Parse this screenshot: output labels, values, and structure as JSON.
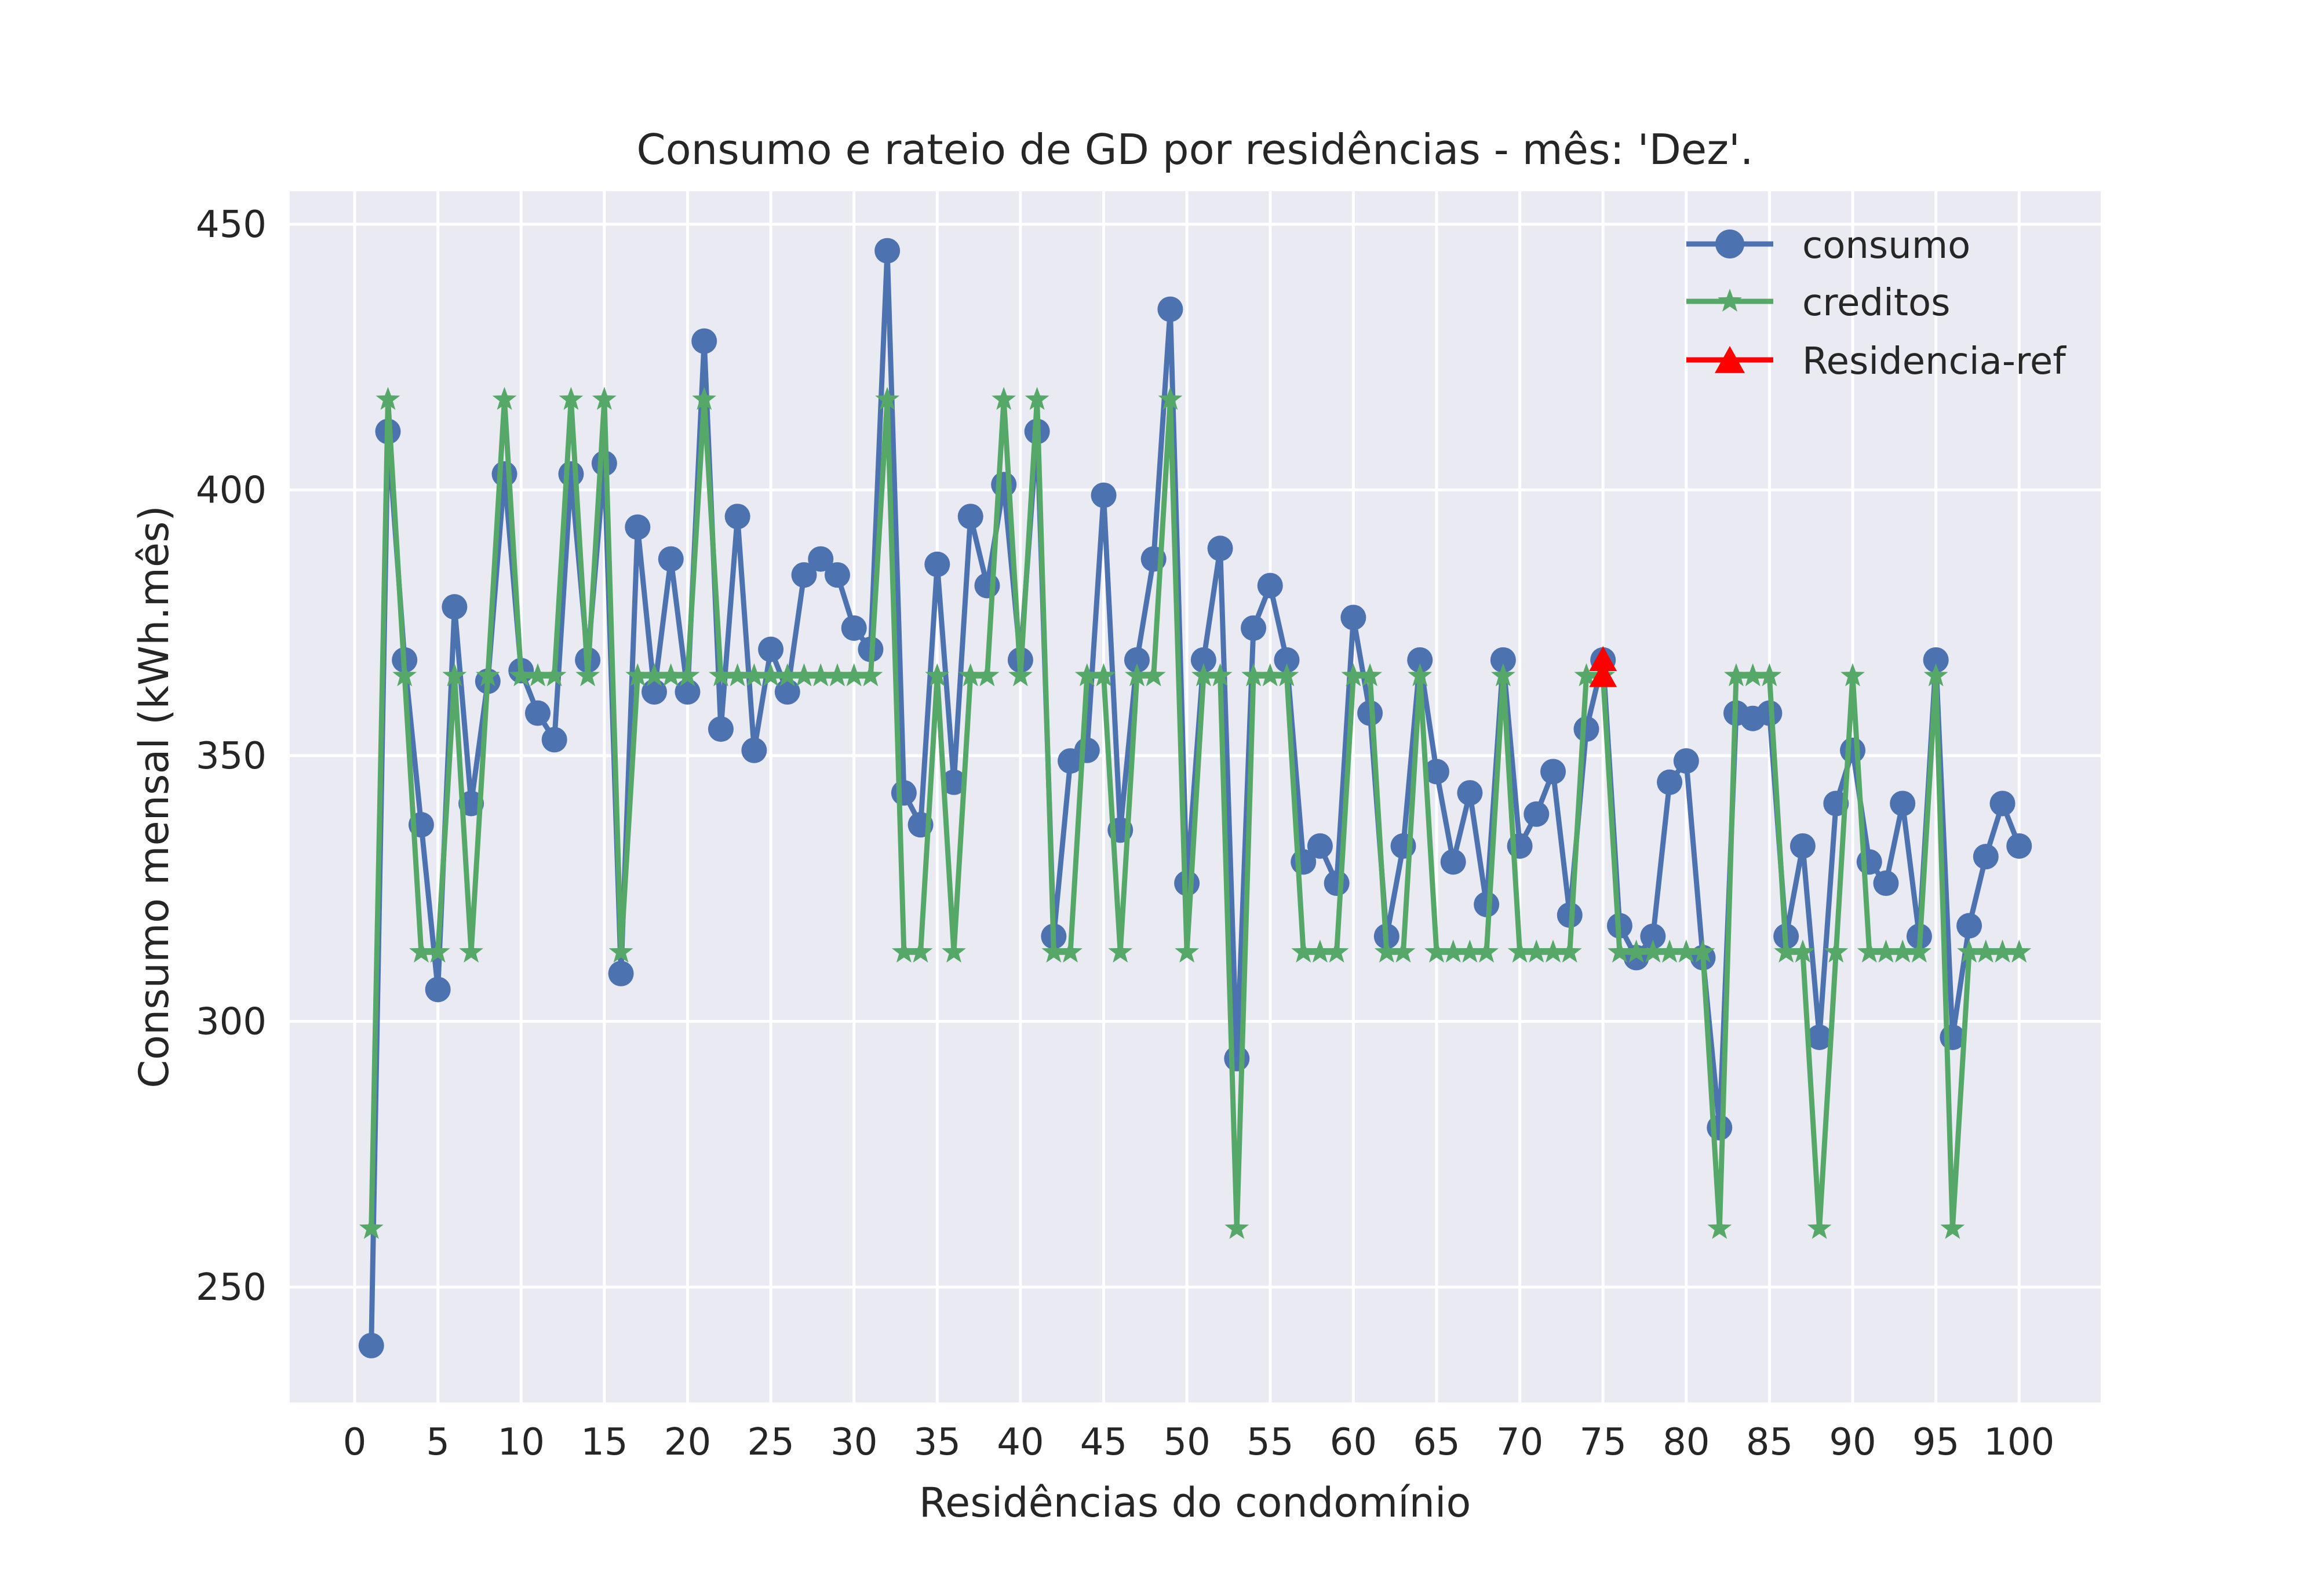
{
  "chart_data": {
    "type": "line",
    "title": "Consumo e rateio de GD por residências - mês: 'Dez'.",
    "xlabel": "Residências do condomínio",
    "ylabel": "Consumo mensal (kWh.mês)",
    "xlim": [
      -3.9,
      104.9
    ],
    "ylim": [
      228.3,
      456.2
    ],
    "xticks": [
      0,
      5,
      10,
      15,
      20,
      25,
      30,
      35,
      40,
      45,
      50,
      55,
      60,
      65,
      70,
      75,
      80,
      85,
      90,
      95,
      100
    ],
    "xtick_labels": [
      "0",
      "5",
      "10",
      "15",
      "20",
      "25",
      "30",
      "35",
      "40",
      "45",
      "50",
      "55",
      "60",
      "65",
      "70",
      "75",
      "80",
      "85",
      "90",
      "95",
      "100"
    ],
    "yticks": [
      250,
      300,
      350,
      400,
      450
    ],
    "ytick_labels": [
      "250",
      "300",
      "350",
      "400",
      "450"
    ],
    "grid": true,
    "legend_position": "upper right",
    "x": [
      1,
      2,
      3,
      4,
      5,
      6,
      7,
      8,
      9,
      10,
      11,
      12,
      13,
      14,
      15,
      16,
      17,
      18,
      19,
      20,
      21,
      22,
      23,
      24,
      25,
      26,
      27,
      28,
      29,
      30,
      31,
      32,
      33,
      34,
      35,
      36,
      37,
      38,
      39,
      40,
      41,
      42,
      43,
      44,
      45,
      46,
      47,
      48,
      49,
      50,
      51,
      52,
      53,
      54,
      55,
      56,
      57,
      58,
      59,
      60,
      61,
      62,
      63,
      64,
      65,
      66,
      67,
      68,
      69,
      70,
      71,
      72,
      73,
      74,
      75,
      76,
      77,
      78,
      79,
      80,
      81,
      82,
      83,
      84,
      85,
      86,
      87,
      88,
      89,
      90,
      91,
      92,
      93,
      94,
      95,
      96,
      97,
      98,
      99,
      100
    ],
    "series": [
      {
        "name": "consumo",
        "color": "#4c72b0",
        "marker": "circle",
        "values": [
          239,
          411,
          368,
          337,
          306,
          378,
          341,
          364,
          403,
          366,
          358,
          353,
          403,
          368,
          405,
          309,
          393,
          362,
          387,
          362,
          428,
          355,
          395,
          351,
          370,
          362,
          384,
          387,
          384,
          374,
          370,
          445,
          343,
          337,
          386,
          345,
          395,
          382,
          401,
          368,
          411,
          316,
          349,
          351,
          399,
          336,
          368,
          387,
          434,
          326,
          368,
          389,
          293,
          374,
          382,
          368,
          330,
          333,
          326,
          376,
          358,
          316,
          333,
          368,
          347,
          330,
          343,
          322,
          368,
          333,
          339,
          347,
          320,
          355,
          368,
          318,
          312,
          316,
          345,
          349,
          312,
          280,
          358,
          357,
          358,
          316,
          333,
          297,
          341,
          351,
          330,
          326,
          341,
          316,
          368,
          297,
          318,
          331,
          341,
          333
        ]
      },
      {
        "name": "creditos",
        "color": "#55a868",
        "marker": "star",
        "values": [
          261,
          417,
          365,
          313,
          313,
          365,
          313,
          365,
          417,
          365,
          365,
          365,
          417,
          365,
          417,
          313,
          365,
          365,
          365,
          365,
          417,
          365,
          365,
          365,
          365,
          365,
          365,
          365,
          365,
          365,
          365,
          417,
          313,
          313,
          365,
          313,
          365,
          365,
          417,
          365,
          417,
          313,
          313,
          365,
          365,
          313,
          365,
          365,
          417,
          313,
          365,
          365,
          261,
          365,
          365,
          365,
          313,
          313,
          313,
          365,
          365,
          313,
          313,
          365,
          313,
          313,
          313,
          313,
          365,
          313,
          313,
          313,
          313,
          365,
          365,
          313,
          313,
          313,
          313,
          313,
          313,
          261,
          365,
          365,
          365,
          313,
          313,
          261,
          313,
          365,
          313,
          313,
          313,
          313,
          365,
          261,
          313,
          313,
          313,
          313
        ]
      },
      {
        "name": "Residencia-ref",
        "color": "#ff0000",
        "marker": "triangle",
        "x": [
          75,
          75
        ],
        "values": [
          368,
          365
        ]
      }
    ]
  }
}
